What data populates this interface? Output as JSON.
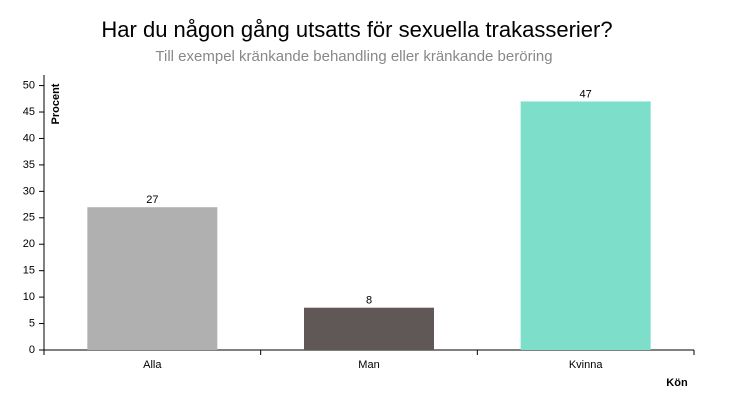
{
  "chart_data": {
    "type": "bar",
    "title": "Har du någon gång utsatts för sexuella trakasserier?",
    "subtitle": "Till exempel kränkande behandling eller kränkande beröring",
    "x_label": "Kön",
    "y_label": "Procent",
    "categories": [
      "Alla",
      "Man",
      "Kvinna"
    ],
    "values": [
      27,
      8,
      47
    ],
    "colors": [
      "#b0b0b0",
      "#605856",
      "#7ddfc9"
    ],
    "ylim": [
      0,
      52
    ],
    "yticks": [
      0,
      5,
      10,
      15,
      20,
      25,
      30,
      35,
      40,
      45,
      50
    ]
  }
}
